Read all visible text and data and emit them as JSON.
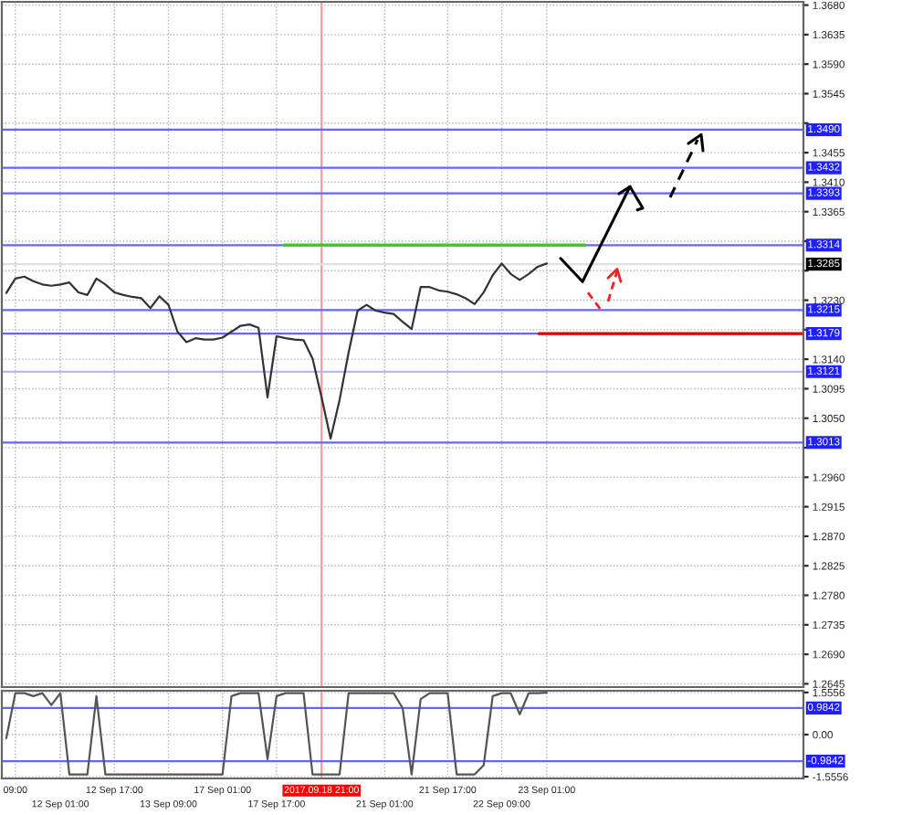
{
  "chart_data": [
    {
      "type": "line",
      "tick_labels": "y",
      "grid": true,
      "legend": false,
      "categories": [
        null,
        "09:00",
        null,
        null,
        null,
        null,
        "12 Sep 01:00",
        null,
        null,
        null,
        null,
        null,
        "12 Sep 17:00",
        null,
        null,
        null,
        null,
        null,
        "13 Sep 09:00",
        null,
        null,
        null,
        null,
        null,
        "17 Sep 01:00",
        null,
        null,
        null,
        null,
        null,
        "17 Sep 17:00",
        null,
        null,
        null,
        null,
        "2017.09.18 21:00",
        null,
        null,
        null,
        null,
        null,
        null,
        "21 Sep 01:00",
        null,
        null,
        null,
        null,
        null,
        null,
        "21 Sep 17:00",
        null,
        null,
        null,
        null,
        null,
        "22 Sep 09:00",
        null,
        null,
        null,
        null,
        "23 Sep 01:00",
        null,
        null,
        null,
        null,
        null,
        null,
        null,
        null,
        null,
        null,
        null,
        null,
        null,
        null,
        null,
        null,
        null,
        null,
        null,
        null,
        null,
        null,
        null,
        null,
        null,
        null,
        null,
        null
      ],
      "series": [
        {
          "color": "#333333",
          "values": [
            1.3241,
            1.3263,
            1.3266,
            1.3259,
            1.3254,
            1.3252,
            1.3254,
            1.3257,
            1.3242,
            1.3238,
            1.3263,
            1.3254,
            1.3242,
            1.3238,
            1.3235,
            1.3233,
            1.3218,
            1.3236,
            1.3223,
            1.3182,
            1.3166,
            1.3172,
            1.317,
            1.317,
            1.3173,
            1.3182,
            1.3191,
            1.3193,
            1.3188,
            1.3082,
            1.3175,
            1.3172,
            1.317,
            1.3169,
            1.3141,
            1.3082,
            1.3019,
            1.3078,
            1.315,
            1.3214,
            1.3223,
            1.3214,
            1.3211,
            1.3209,
            1.3197,
            1.3186,
            1.325,
            1.325,
            1.3245,
            1.3243,
            1.3239,
            1.3233,
            1.3224,
            1.3242,
            1.3268,
            1.3286,
            1.327,
            1.3261,
            1.327,
            1.3281,
            1.3286,
            null,
            null,
            null,
            null,
            null,
            null,
            null,
            null,
            null,
            null,
            null,
            null,
            null,
            null,
            null,
            null,
            null,
            null,
            null,
            null,
            null,
            null,
            null,
            null,
            null,
            null,
            null,
            null
          ]
        }
      ],
      "ylim": [
        1.264,
        1.3685
      ],
      "yticks": [
        {
          "value": 1.368,
          "label": "1.3680"
        },
        1.3635,
        {
          "value": 1.359,
          "label": "1.3590"
        },
        1.3545,
        {
          "value": 1.35,
          "label": null
        },
        1.3455,
        {
          "value": 1.341,
          "label": "1.3410"
        },
        1.3365,
        {
          "value": 1.332,
          "label": null
        },
        {
          "value": 1.3275,
          "label": null
        },
        {
          "value": 1.323,
          "label": "1.3230"
        },
        {
          "value": 1.3185,
          "label": null
        },
        {
          "value": 1.314,
          "label": "1.3140"
        },
        1.3095,
        {
          "value": 1.305,
          "label": "1.3050"
        },
        {
          "value": 1.3005,
          "label": null
        },
        {
          "value": 1.296,
          "label": "1.2960"
        },
        1.2915,
        {
          "value": 1.287,
          "label": "1.2870"
        },
        1.2825,
        {
          "value": 1.278,
          "label": "1.2780"
        },
        1.2735,
        {
          "value": 1.269,
          "label": "1.2690"
        },
        1.2645
      ],
      "ref_lines": [
        {
          "axis": "x",
          "value": "2017.09.18 21:00",
          "color": "#ff9999"
        },
        {
          "axis": "y",
          "value": 1.349,
          "label": "1.3490",
          "color": "#6666ff"
        },
        {
          "axis": "y",
          "value": 1.3432,
          "label": "1.3432",
          "color": "#6666ff"
        },
        {
          "axis": "y",
          "value": 1.3393,
          "label": "1.3393",
          "color": "#6666ff"
        },
        {
          "axis": "y",
          "value": 1.3314,
          "label": "1.3314",
          "color": "#6666ff"
        },
        {
          "axis": "y",
          "value": 1.3285,
          "label": "1.3285",
          "color": "#e0e0e0"
        },
        {
          "axis": "y",
          "value": 1.3215,
          "label": "1.3215",
          "color": "#6666ff"
        },
        {
          "axis": "y",
          "value": 1.3179,
          "label": "1.3179",
          "color": "#6666ff"
        },
        {
          "axis": "y",
          "value": 1.3121,
          "label": "1.3121",
          "color": "#b8b8ff"
        },
        {
          "axis": "y",
          "value": 1.3013,
          "label": "1.3013",
          "color": "#6666ff"
        },
        {
          "axis": "y",
          "value": 1.3314,
          "color": "#33cc33"
        },
        {
          "axis": "y",
          "value": 1.3179,
          "color": "#e00000"
        }
      ]
    },
    {
      "type": "line",
      "grid": true,
      "legend": false,
      "categories": [
        null,
        "09:00",
        null,
        null,
        null,
        null,
        "12 Sep 01:00",
        null,
        null,
        null,
        null,
        null,
        "12 Sep 17:00",
        null,
        null,
        null,
        null,
        null,
        "13 Sep 09:00",
        null,
        null,
        null,
        null,
        null,
        "17 Sep 01:00",
        null,
        null,
        null,
        null,
        null,
        "17 Sep 17:00",
        null,
        null,
        null,
        null,
        "2017.09.18 21:00",
        null,
        null,
        null,
        null,
        null,
        null,
        "21 Sep 01:00",
        null,
        null,
        null,
        null,
        null,
        null,
        "21 Sep 17:00",
        null,
        null,
        null,
        null,
        null,
        "22 Sep 09:00",
        null,
        null,
        null,
        null,
        "23 Sep 01:00",
        null,
        null,
        null,
        null,
        null,
        null,
        null,
        null,
        null,
        null,
        null,
        null,
        null,
        null,
        null,
        null,
        null,
        null,
        null,
        null,
        null,
        null,
        null,
        null,
        null,
        null,
        null,
        null
      ],
      "series": [
        {
          "color": "#555555",
          "values": [
            -0.13,
            1.53,
            1.53,
            1.42,
            1.53,
            1.09,
            1.53,
            -1.47,
            -1.47,
            -1.47,
            1.42,
            -1.47,
            -1.47,
            -1.47,
            -1.47,
            -1.47,
            -1.47,
            -1.47,
            -1.47,
            -1.47,
            -1.47,
            -1.47,
            -1.47,
            -1.47,
            -1.47,
            1.42,
            1.53,
            1.53,
            1.53,
            -0.91,
            1.42,
            1.53,
            1.53,
            1.53,
            -1.47,
            -1.47,
            -1.47,
            -1.47,
            1.53,
            1.53,
            1.53,
            1.53,
            1.53,
            1.53,
            0.98,
            -1.47,
            1.31,
            1.53,
            1.53,
            1.53,
            -1.47,
            -1.47,
            -1.47,
            -1.13,
            1.42,
            1.53,
            1.53,
            0.75,
            1.53,
            1.53,
            1.55,
            null,
            null,
            null,
            null,
            null,
            null,
            null,
            null,
            null,
            null,
            null,
            null,
            null,
            null,
            null,
            null,
            null,
            null,
            null,
            null,
            null,
            null,
            null,
            null,
            null,
            null,
            null,
            null
          ]
        }
      ],
      "ylim": [
        -1.62,
        1.62
      ],
      "yticks": [
        1.5556,
        {
          "value": 0,
          "label": "0.00"
        },
        -1.5556
      ],
      "ref_lines": [
        {
          "axis": "x",
          "value": "2017.09.18 21:00",
          "color": "#ff9999"
        },
        {
          "axis": "y",
          "value": 0.9842,
          "label": "0.9842",
          "color": "#6666ff"
        },
        {
          "axis": "y",
          "value": -0.9842,
          "label": "-0.9842",
          "color": "#6666ff"
        }
      ]
    }
  ]
}
